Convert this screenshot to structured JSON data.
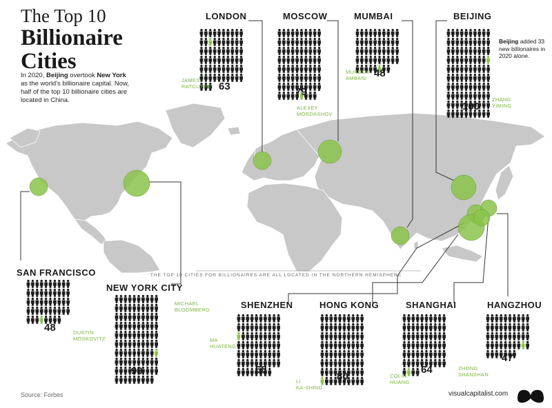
{
  "title": {
    "line1": "The Top 10",
    "line2": "Billionaire",
    "line3": "Cities"
  },
  "intro": {
    "part1": "In 2020, ",
    "b1": "Beijing",
    "part2": " overtook ",
    "b2": "New York",
    "part3": " as the world's billionaire capital. Now, half of the top 10 billionaire cities are located in China."
  },
  "beijing_note": {
    "bold": "Beijing",
    "text": " added 33 new billionaires in 2020 alone."
  },
  "footnote": "THE TOP 10 CITIES FOR BILLIONAIRES ARE ALL LOCATED IN THE NORTHERN HEMISPHERE",
  "source": "Source: Forbes",
  "brand": "visualcapitalist.com",
  "colors": {
    "accent": "#8bc34a",
    "person": "#1e1e1e",
    "land": "#c8c8c8",
    "connector": "#333333"
  },
  "cities": [
    {
      "name": "LONDON",
      "count": "63",
      "count_value": 63,
      "richest": [
        "JAMES",
        "RATCLIFFE"
      ]
    },
    {
      "name": "MOSCOW",
      "count": "79",
      "count_value": 79,
      "richest": [
        "ALEXEY",
        "MORDASHOV"
      ]
    },
    {
      "name": "MUMBAI",
      "count": "48",
      "count_value": 48,
      "richest": [
        "MUKESH",
        "AMBANI"
      ]
    },
    {
      "name": "BEIJING",
      "count": "100",
      "count_value": 100,
      "richest": [
        "ZHANG",
        "YIMING"
      ]
    },
    {
      "name": "SAN FRANCISCO",
      "count": "48",
      "count_value": 48,
      "richest": [
        "DUSTIN",
        "MOSKOVITZ"
      ]
    },
    {
      "name": "NEW YORK CITY",
      "count": "99",
      "count_value": 99,
      "richest": [
        "MICHAEL",
        "BLOOMBERG"
      ]
    },
    {
      "name": "SHENZHEN",
      "count": "68",
      "count_value": 68,
      "richest": [
        "MA",
        "HUATENG"
      ]
    },
    {
      "name": "HONG KONG",
      "count": "80",
      "count_value": 80,
      "richest": [
        "LI",
        "KA-SHING"
      ]
    },
    {
      "name": "SHANGHAI",
      "count": "64",
      "count_value": 64,
      "richest": [
        "COLIN",
        "HUANG"
      ]
    },
    {
      "name": "HANGZHOU",
      "count": "47",
      "count_value": 47,
      "richest": [
        "ZHONG",
        "SHANSHAN"
      ]
    }
  ]
}
